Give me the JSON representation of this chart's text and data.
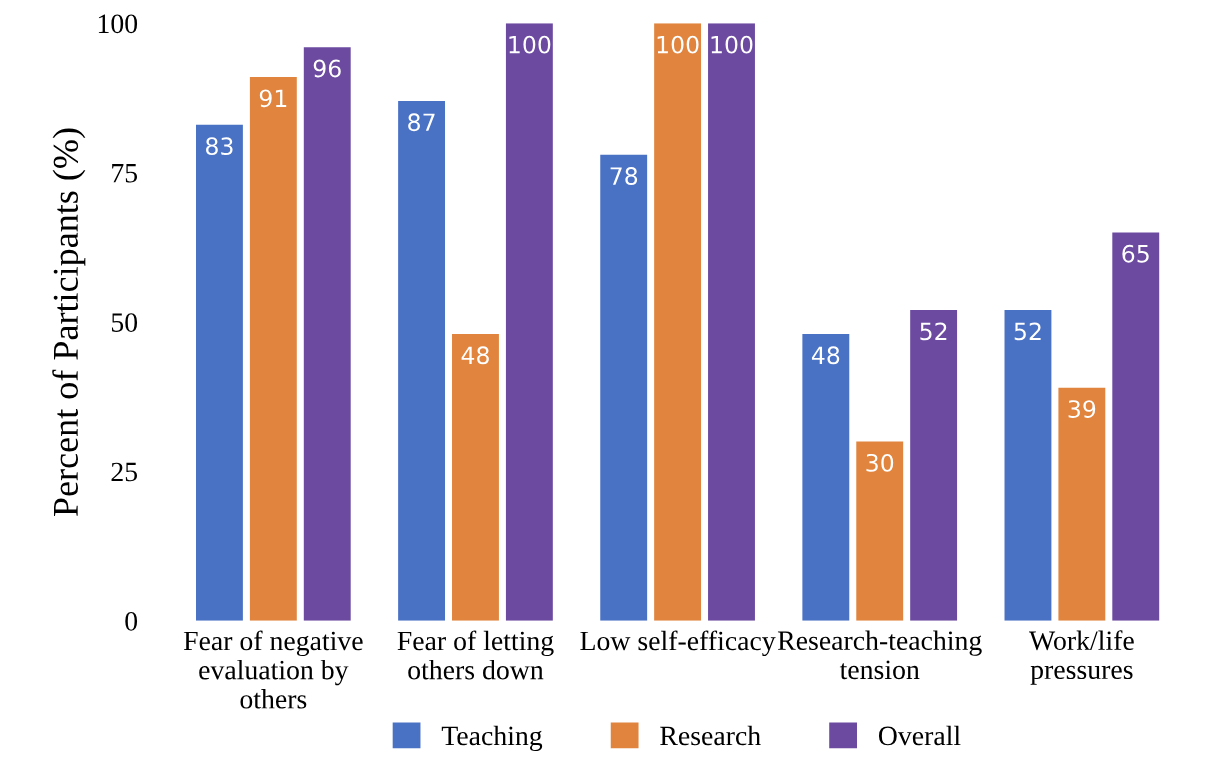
{
  "chart_data": {
    "type": "bar",
    "ylabel": "Percent of Participants (%)",
    "categories": [
      "Fear of negative\nevaluation by\nothers",
      "Fear of letting\nothers down",
      "Low self-efficacy",
      "Research-teaching\ntension",
      "Work/life\npressures"
    ],
    "series": [
      {
        "name": "Teaching",
        "color": "#4a72c4",
        "values": [
          83,
          87,
          78,
          48,
          52
        ]
      },
      {
        "name": "Research",
        "color": "#e0843e",
        "values": [
          91,
          48,
          100,
          30,
          39
        ]
      },
      {
        "name": "Overall",
        "color": "#6b4aa0",
        "values": [
          96,
          100,
          100,
          52,
          65
        ]
      }
    ],
    "ylim": [
      0,
      100
    ],
    "yticks": [
      0,
      25,
      50,
      75,
      100
    ],
    "data_labels": true,
    "grid": false,
    "legend": "bottom"
  }
}
